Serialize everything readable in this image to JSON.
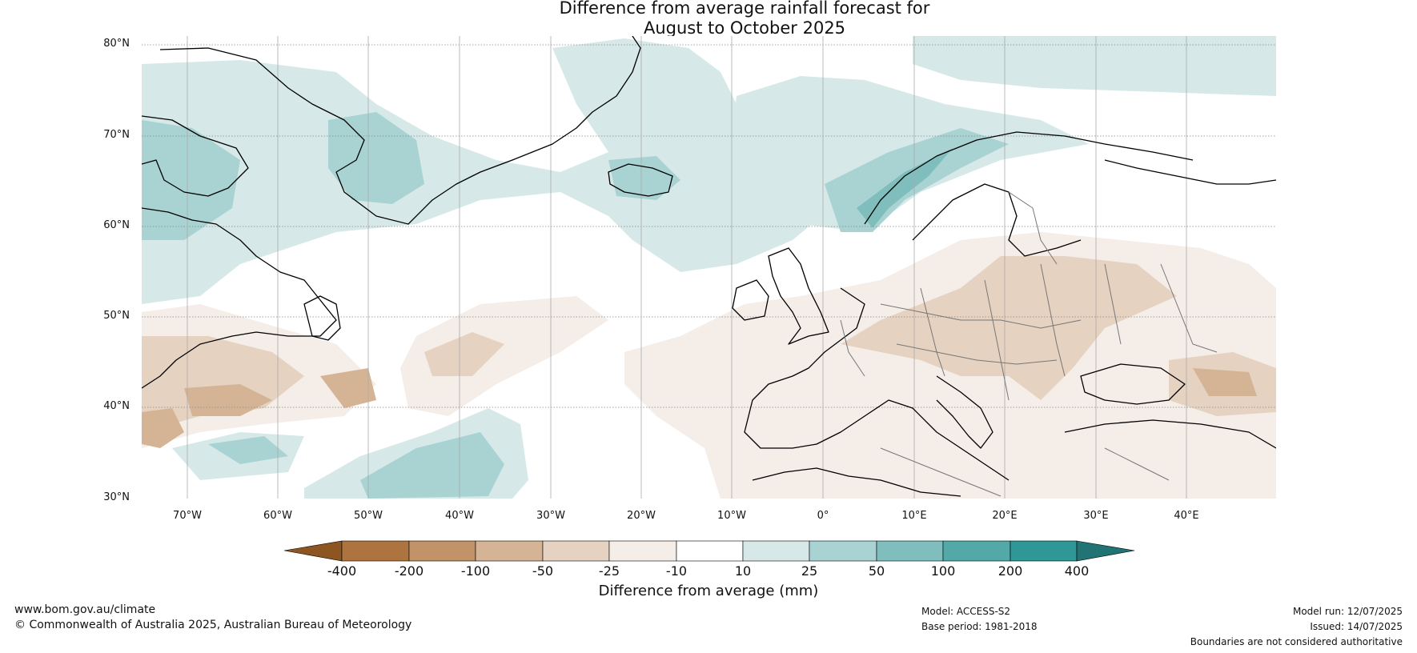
{
  "title": {
    "line1": "Difference from average rainfall forecast for",
    "line2": "August to October 2025"
  },
  "map": {
    "region": "North Atlantic and Europe",
    "lat_labels": [
      "80°N",
      "70°N",
      "60°N",
      "50°N",
      "40°N",
      "30°N"
    ],
    "lon_labels": [
      "70°W",
      "60°W",
      "50°W",
      "40°W",
      "30°W",
      "20°W",
      "10°W",
      "0°",
      "10°E",
      "20°E",
      "30°E",
      "40°E"
    ],
    "colors": {
      "ocean_land_bg": "#ffffff",
      "gridline": "#888888",
      "coastline": "#000000",
      "border": "#777777"
    }
  },
  "colorbar": {
    "title": "Difference from average (mm)",
    "tick_labels": [
      "-400",
      "-200",
      "-100",
      "-50",
      "-25",
      "-10",
      "10",
      "25",
      "50",
      "100",
      "200",
      "400"
    ],
    "colors": [
      "#8c5522",
      "#ad7440",
      "#c29369",
      "#d4b495",
      "#e5d2c1",
      "#f4ede8",
      "#ffffff",
      "#d6e9e8",
      "#a8d3d2",
      "#7fbebd",
      "#53a8a8",
      "#2f9897",
      "#227474"
    ]
  },
  "footer": {
    "website": "www.bom.gov.au/climate",
    "copyright": "© Commonwealth of Australia 2025, Australian Bureau of Meteorology",
    "model": "Model: ACCESS-S2",
    "base_period": "Base period: 1981-2018",
    "model_run": "Model run: 12/07/2025",
    "issued": "Issued: 14/07/2025",
    "disclaimer": "Boundaries are not considered authoritative"
  }
}
